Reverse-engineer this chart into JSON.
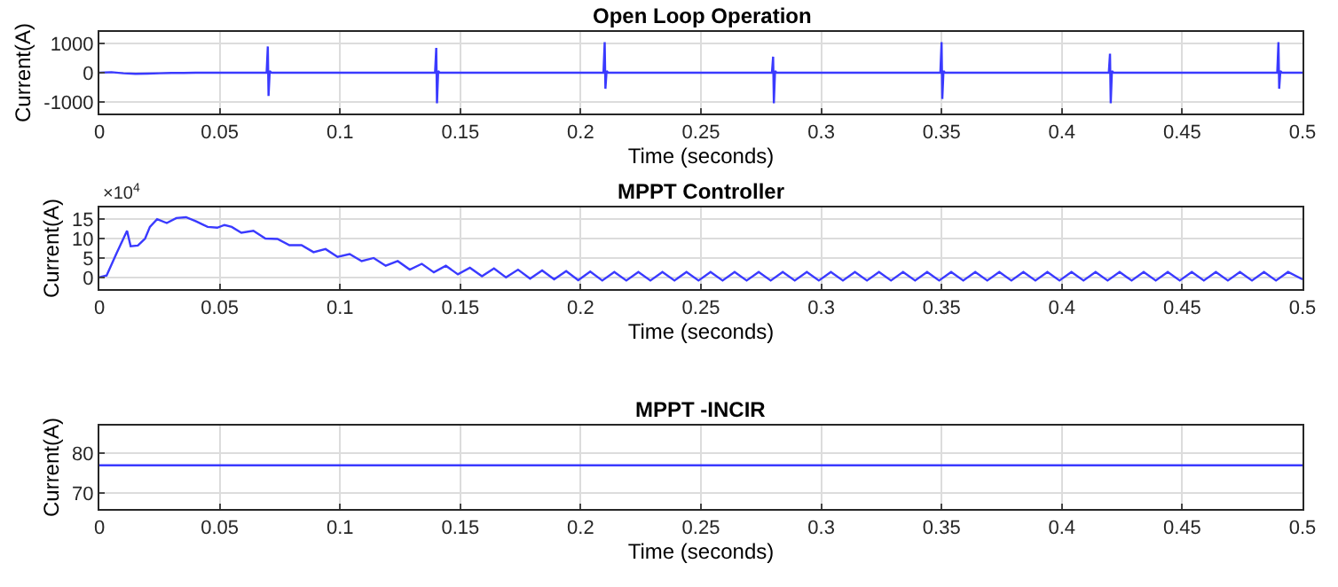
{
  "chart_data": [
    {
      "type": "line",
      "title": "Open Loop Operation",
      "xlabel": "Time (seconds)",
      "ylabel": "Current(A)",
      "grid": true,
      "xlim": [
        0,
        0.5
      ],
      "xticks": [
        0,
        0.05,
        0.1,
        0.15,
        0.2,
        0.25,
        0.3,
        0.35,
        0.4,
        0.45,
        0.5
      ],
      "ylim": [
        -1400,
        1400
      ],
      "yticks": [
        -1000,
        0,
        1000
      ],
      "series": [
        {
          "color": "#3a3aff",
          "x": [
            0,
            0.005,
            0.01,
            0.015,
            0.02,
            0.025,
            0.03,
            0.035,
            0.04,
            0.05,
            0.06,
            0.0695,
            0.07,
            0.0703,
            0.0708,
            0.0715,
            0.1395,
            0.14,
            0.1403,
            0.1408,
            0.1415,
            0.2095,
            0.21,
            0.2103,
            0.2108,
            0.2115,
            0.2795,
            0.28,
            0.2803,
            0.2808,
            0.2815,
            0.3495,
            0.35,
            0.3503,
            0.3508,
            0.3515,
            0.4195,
            0.42,
            0.4203,
            0.4208,
            0.4215,
            0.4895,
            0.49,
            0.4903,
            0.4908,
            0.4915,
            0.5
          ],
          "values": [
            0,
            20,
            -20,
            -40,
            -30,
            -20,
            -10,
            -10,
            0,
            0,
            0,
            0,
            900,
            -800,
            60,
            0,
            0,
            850,
            -1050,
            60,
            0,
            0,
            1050,
            -550,
            60,
            0,
            0,
            550,
            -1050,
            60,
            0,
            0,
            1050,
            -900,
            60,
            0,
            0,
            650,
            -1050,
            60,
            0,
            0,
            1050,
            -550,
            60,
            0,
            0
          ]
        }
      ]
    },
    {
      "type": "line",
      "title": "MPPT Controller",
      "xlabel": "Time (seconds)",
      "ylabel": "Current(A)",
      "annotations": [
        "×10$^{4}$"
      ],
      "grid": true,
      "xlim": [
        0,
        0.5
      ],
      "xticks": [
        0,
        0.05,
        0.1,
        0.15,
        0.2,
        0.25,
        0.3,
        0.35,
        0.4,
        0.45,
        0.5
      ],
      "ylim": [
        -3,
        18
      ],
      "yticks": [
        0,
        5,
        10,
        15
      ],
      "series": [
        {
          "color": "#3a3aff",
          "x": [
            0,
            0.003,
            0.007,
            0.0115,
            0.013,
            0.016,
            0.019,
            0.021,
            0.024,
            0.028,
            0.032,
            0.036,
            0.04,
            0.045,
            0.049,
            0.052,
            0.055,
            0.059,
            0.064,
            0.069,
            0.074,
            0.079,
            0.084,
            0.089,
            0.094,
            0.099,
            0.104,
            0.109,
            0.114,
            0.119,
            0.124,
            0.129,
            0.134,
            0.139,
            0.144,
            0.149,
            0.154,
            0.159,
            0.164,
            0.169,
            0.174,
            0.179,
            0.184,
            0.189,
            0.194,
            0.199,
            0.204,
            0.209,
            0.214,
            0.219,
            0.224,
            0.229,
            0.234,
            0.239,
            0.244,
            0.249,
            0.254,
            0.259,
            0.264,
            0.269,
            0.274,
            0.279,
            0.284,
            0.289,
            0.294,
            0.299,
            0.304,
            0.309,
            0.314,
            0.319,
            0.324,
            0.329,
            0.334,
            0.339,
            0.344,
            0.349,
            0.354,
            0.359,
            0.364,
            0.369,
            0.374,
            0.379,
            0.384,
            0.389,
            0.394,
            0.399,
            0.404,
            0.409,
            0.414,
            0.419,
            0.424,
            0.429,
            0.434,
            0.439,
            0.444,
            0.449,
            0.454,
            0.459,
            0.464,
            0.469,
            0.474,
            0.479,
            0.484,
            0.489,
            0.494,
            0.5
          ],
          "values": [
            0,
            0.5,
            6,
            12,
            8,
            8.2,
            10,
            13,
            15,
            14,
            15.3,
            15.5,
            14.5,
            13,
            12.8,
            13.5,
            13,
            11.5,
            12,
            10,
            9.9,
            8.3,
            8.3,
            6.5,
            7.3,
            5.3,
            6,
            4.2,
            5,
            3,
            4.2,
            2,
            3.5,
            1.3,
            3,
            0.8,
            2.5,
            0.3,
            2.3,
            0,
            2,
            -0.3,
            1.8,
            -0.5,
            1.6,
            -0.7,
            1.5,
            -0.8,
            1.4,
            -0.8,
            1.4,
            -0.8,
            1.4,
            -0.8,
            1.4,
            -0.8,
            1.4,
            -0.8,
            1.4,
            -0.8,
            1.4,
            -0.8,
            1.4,
            -0.8,
            1.4,
            -0.8,
            1.4,
            -0.8,
            1.4,
            -0.8,
            1.4,
            -0.8,
            1.4,
            -0.8,
            1.4,
            -0.8,
            1.4,
            -0.8,
            1.4,
            -0.8,
            1.4,
            -0.8,
            1.4,
            -0.8,
            1.4,
            -0.8,
            1.4,
            -0.8,
            1.4,
            -0.8,
            1.4,
            -0.8,
            1.4,
            -0.8,
            1.4,
            -0.8,
            1.4,
            -0.8,
            1.4,
            -0.8,
            1.4,
            -0.8,
            1.4,
            -0.8,
            1.4,
            -0.5
          ]
        }
      ]
    },
    {
      "type": "line",
      "title": "MPPT -INCIR",
      "xlabel": "Time (seconds)",
      "ylabel": "Current(A)",
      "grid": true,
      "xlim": [
        0,
        0.5
      ],
      "xticks": [
        0,
        0.05,
        0.1,
        0.15,
        0.2,
        0.25,
        0.3,
        0.35,
        0.4,
        0.45,
        0.5
      ],
      "ylim": [
        66,
        87
      ],
      "yticks": [
        70,
        80
      ],
      "series": [
        {
          "color": "#3a3aff",
          "x": [
            0,
            0.5
          ],
          "values": [
            77,
            77
          ]
        }
      ]
    }
  ]
}
